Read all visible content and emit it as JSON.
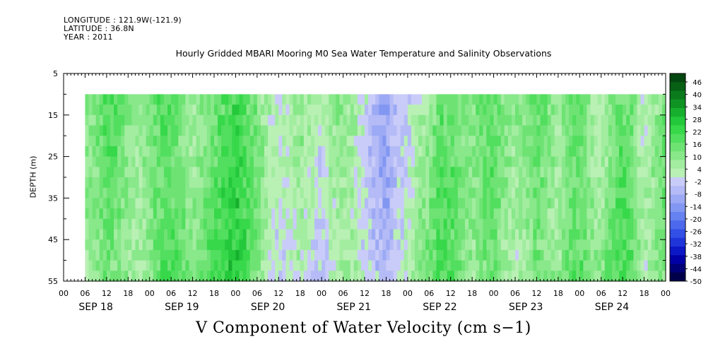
{
  "metadata": {
    "longitude": "LONGITUDE : 121.9W(-121.9)",
    "latitude": "LATITUDE : 36.8N",
    "year": "YEAR : 2011"
  },
  "colors": {
    "bands": [
      "#00004a",
      "#000078",
      "#0000a6",
      "#0c18c6",
      "#1f35da",
      "#3250e6",
      "#4c68ec",
      "#6681f0",
      "#8297f2",
      "#9ca9f4",
      "#b4bbf6",
      "#c9ccf8",
      "#b9f0b4",
      "#a2eda0",
      "#88e88a",
      "#6ee374",
      "#52de5e",
      "#37d84a",
      "#24c83b",
      "#17b02e",
      "#0f9424",
      "#0a7a1c",
      "#076014",
      "#044610"
    ]
  },
  "chart_data": {
    "type": "heatmap",
    "title": "Hourly Gridded MBARI Mooring M0 Sea Water Temperature and Salinity Observations",
    "subtitle": "V Component of Water Velocity (cm s−1)",
    "ylabel": "DEPTH (m)",
    "y_range": [
      5,
      55
    ],
    "y_inverted": true,
    "y_ticks": [
      5,
      15,
      25,
      35,
      45,
      55
    ],
    "x_range_hours": [
      0,
      168
    ],
    "data_start_hour": 6,
    "data_depth_range": [
      10,
      55
    ],
    "x_hour_tick_labels": [
      "00",
      "06",
      "12",
      "18",
      "00",
      "06",
      "12",
      "18",
      "00",
      "06",
      "12",
      "18",
      "00",
      "06",
      "12",
      "18",
      "00",
      "06",
      "12",
      "18",
      "00",
      "06",
      "12",
      "18",
      "00",
      "06",
      "12",
      "18",
      "00"
    ],
    "x_day_labels": [
      "SEP 18",
      "SEP 19",
      "SEP 20",
      "SEP 21",
      "SEP 22",
      "SEP 23",
      "SEP 24"
    ],
    "colorbar_levels": [
      -50,
      -44,
      -38,
      -32,
      -26,
      -20,
      -14,
      -8,
      -2,
      4,
      10,
      16,
      22,
      28,
      34,
      40,
      46
    ],
    "colorbar_labels": [
      "46",
      "40",
      "34",
      "28",
      "22",
      "16",
      "10",
      "4",
      "-2",
      "-8",
      "-14",
      "-20",
      "-26",
      "-32",
      "-38",
      "-44",
      "-50"
    ],
    "column_values_by_hour": [
      [
        6,
        3
      ],
      [
        9,
        5
      ],
      [
        12,
        12
      ],
      [
        15,
        10
      ],
      [
        18,
        6
      ],
      [
        21,
        4
      ],
      [
        24,
        8
      ],
      [
        27,
        14
      ],
      [
        30,
        16
      ],
      [
        33,
        10
      ],
      [
        36,
        5
      ],
      [
        39,
        8
      ],
      [
        42,
        12
      ],
      [
        45,
        15
      ],
      [
        48,
        18
      ],
      [
        51,
        12
      ],
      [
        54,
        6
      ],
      [
        57,
        -2
      ],
      [
        60,
        -6
      ],
      [
        63,
        -4
      ],
      [
        66,
        2
      ],
      [
        69,
        -3
      ],
      [
        72,
        -5
      ],
      [
        75,
        2
      ],
      [
        78,
        6
      ],
      [
        81,
        3
      ],
      [
        84,
        -2
      ],
      [
        87,
        -8
      ],
      [
        90,
        -12
      ],
      [
        93,
        -6
      ],
      [
        96,
        -3
      ],
      [
        99,
        2
      ],
      [
        102,
        5
      ],
      [
        105,
        12
      ],
      [
        108,
        10
      ],
      [
        111,
        6
      ],
      [
        114,
        2
      ],
      [
        117,
        8
      ],
      [
        120,
        10
      ],
      [
        123,
        4
      ],
      [
        126,
        2
      ],
      [
        129,
        6
      ],
      [
        132,
        12
      ],
      [
        135,
        8
      ],
      [
        138,
        5
      ],
      [
        141,
        12
      ],
      [
        144,
        14
      ],
      [
        147,
        6
      ],
      [
        150,
        2
      ],
      [
        153,
        10
      ],
      [
        156,
        14
      ],
      [
        159,
        8
      ],
      [
        162,
        -4
      ],
      [
        165,
        3
      ],
      [
        168,
        8
      ]
    ]
  }
}
